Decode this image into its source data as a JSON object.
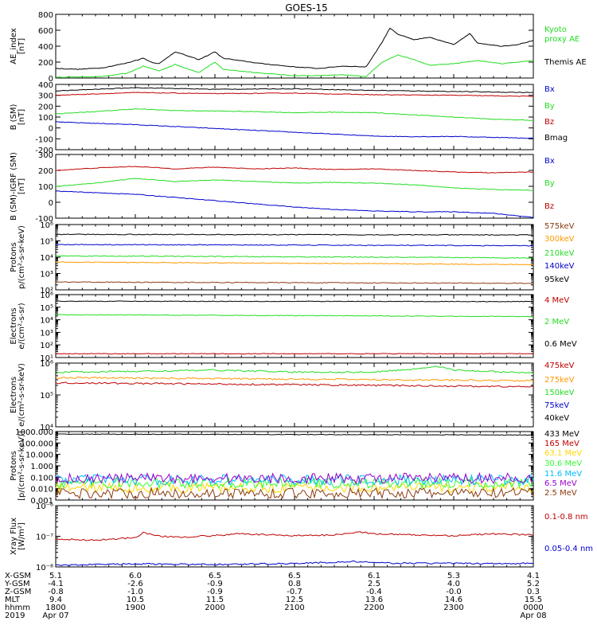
{
  "title": "GOES-15",
  "colors": {
    "black": "#000000",
    "red": "#c00000",
    "green": "#22dd22",
    "blue": "#0000cc",
    "orange": "#ff9900",
    "yellow": "#ffd700",
    "lime": "#33ff33",
    "cyan": "#00bbff",
    "purple": "#9900cc",
    "brown": "#8b3a0f"
  },
  "footer": {
    "row_labels": [
      "X-GSM",
      "Y-GSM",
      "Z-GSM",
      "MLT",
      "hhmm",
      "2019"
    ],
    "columns": [
      [
        "5.1",
        "-4.1",
        "-0.8",
        "9.4",
        "1800",
        "Apr 07"
      ],
      [
        "6.0",
        "-2.6",
        "-1.0",
        "10.5",
        "1900",
        ""
      ],
      [
        "6.5",
        "-0.9",
        "-0.9",
        "11.5",
        "2000",
        ""
      ],
      [
        "6.5",
        "0.8",
        "-0.7",
        "12.5",
        "2100",
        ""
      ],
      [
        "6.1",
        "2.5",
        "-0.4",
        "13.6",
        "2200",
        ""
      ],
      [
        "5.3",
        "4.0",
        "-0.0",
        "14.6",
        "2300",
        ""
      ],
      [
        "4.1",
        "5.2",
        "0.3",
        "15.5",
        "0000",
        "Apr 08"
      ]
    ]
  },
  "chart_data": [
    {
      "type": "line",
      "ylabel": [
        "AE_index",
        "[nT]"
      ],
      "scale": "linear",
      "ylim": [
        0,
        800
      ],
      "yticks": [
        0,
        200,
        400,
        600,
        800
      ],
      "ytick_labels": [
        "0",
        "200",
        "400",
        "600",
        "800"
      ],
      "series": [
        {
          "name": "Kyoto proxy AE",
          "legend": [
            "Kyoto",
            "proxy AE"
          ],
          "color": "#22dd22",
          "x": [
            0,
            0.3,
            0.6,
            0.9,
            1.1,
            1.2,
            1.3,
            1.5,
            1.8,
            2.0,
            2.1,
            2.3,
            2.6,
            3.0,
            3.3,
            3.6,
            3.9,
            4.1,
            4.3,
            4.5,
            4.7,
            5.0,
            5.3,
            5.6,
            5.8,
            6.0
          ],
          "y": [
            10,
            15,
            20,
            60,
            150,
            120,
            90,
            170,
            70,
            200,
            110,
            90,
            60,
            30,
            30,
            40,
            20,
            200,
            290,
            230,
            160,
            180,
            220,
            180,
            200,
            220
          ]
        },
        {
          "name": "Themis AE",
          "legend": [
            "Themis AE"
          ],
          "color": "#000000",
          "x": [
            0,
            0.3,
            0.6,
            0.9,
            1.1,
            1.2,
            1.3,
            1.5,
            1.8,
            2.0,
            2.1,
            2.3,
            2.6,
            3.0,
            3.3,
            3.6,
            3.9,
            4.1,
            4.2,
            4.3,
            4.5,
            4.7,
            5.0,
            5.2,
            5.3,
            5.6,
            5.8,
            6.0
          ],
          "y": [
            120,
            110,
            130,
            190,
            250,
            200,
            180,
            330,
            230,
            330,
            250,
            220,
            180,
            140,
            120,
            150,
            140,
            450,
            630,
            550,
            480,
            510,
            420,
            560,
            440,
            400,
            420,
            470
          ]
        }
      ]
    },
    {
      "type": "line",
      "ylabel": [
        "B (SM)",
        "[nT]"
      ],
      "scale": "linear",
      "ylim": [
        -200,
        400
      ],
      "yticks": [
        -200,
        -100,
        0,
        100,
        200,
        300,
        400
      ],
      "ytick_labels": [
        "-200",
        "-100",
        "0",
        "100",
        "200",
        "300",
        "400"
      ],
      "series": [
        {
          "name": "Bx",
          "legend": [
            "Bx"
          ],
          "color": "#0000cc",
          "x": [
            0,
            1,
            2,
            3,
            4,
            4.5,
            5,
            6
          ],
          "y": [
            55,
            30,
            -5,
            -40,
            -75,
            -80,
            -78,
            -95
          ]
        },
        {
          "name": "By",
          "legend": [
            "By"
          ],
          "color": "#22dd22",
          "x": [
            0,
            0.5,
            1,
            1.5,
            2,
            2.5,
            3,
            3.5,
            4,
            4.5,
            5,
            5.5,
            6
          ],
          "y": [
            130,
            150,
            175,
            160,
            155,
            150,
            140,
            145,
            140,
            120,
            100,
            80,
            70
          ]
        },
        {
          "name": "Bz",
          "legend": [
            "Bz"
          ],
          "color": "#c00000",
          "x": [
            0,
            1,
            2,
            3,
            4,
            5,
            6
          ],
          "y": [
            300,
            325,
            315,
            320,
            305,
            300,
            290
          ]
        },
        {
          "name": "Bmag",
          "legend": [
            "Bmag"
          ],
          "color": "#000000",
          "x": [
            0,
            1,
            2,
            3,
            4,
            5,
            6
          ],
          "y": [
            340,
            370,
            355,
            360,
            345,
            335,
            325
          ]
        }
      ]
    },
    {
      "type": "line",
      "ylabel": [
        "B (SM)-IGRF (SM)",
        "[nT]"
      ],
      "scale": "linear",
      "ylim": [
        -100,
        300
      ],
      "yticks": [
        -100,
        0,
        100,
        200,
        300
      ],
      "ytick_labels": [
        "-100",
        "0",
        "100",
        "200",
        "300"
      ],
      "series": [
        {
          "name": "Bx",
          "legend": [
            "Bx"
          ],
          "color": "#0000cc",
          "x": [
            0,
            0.5,
            1,
            1.5,
            2,
            2.5,
            3,
            3.5,
            4,
            4.5,
            5,
            5.5,
            6
          ],
          "y": [
            70,
            60,
            50,
            30,
            10,
            -10,
            -30,
            -45,
            -55,
            -60,
            -60,
            -70,
            -95
          ]
        },
        {
          "name": "By",
          "legend": [
            "By"
          ],
          "color": "#22dd22",
          "x": [
            0,
            0.5,
            1,
            1.5,
            2,
            2.5,
            3,
            3.5,
            4,
            4.5,
            5,
            5.5,
            6
          ],
          "y": [
            100,
            120,
            150,
            130,
            140,
            130,
            120,
            125,
            120,
            110,
            90,
            80,
            75
          ]
        },
        {
          "name": "Bz",
          "legend": [
            "Bz"
          ],
          "color": "#c00000",
          "x": [
            0,
            0.5,
            1,
            1.5,
            2,
            2.5,
            3,
            3.5,
            4,
            4.5,
            5,
            5.5,
            6
          ],
          "y": [
            200,
            215,
            225,
            210,
            220,
            210,
            215,
            205,
            210,
            200,
            190,
            185,
            190
          ]
        }
      ]
    },
    {
      "type": "line",
      "ylabel": [
        "Protons",
        "p/(cm²-s-sr-keV)"
      ],
      "scale": "log",
      "ylim": [
        100.0,
        1000000.0
      ],
      "yticks": [
        100.0,
        1000.0,
        10000.0,
        100000.0,
        1000000.0
      ],
      "ytick_labels": [
        "10²",
        "10³",
        "10⁴",
        "10⁵",
        "10⁶"
      ],
      "series": [
        {
          "name": "575keV",
          "legend": [
            "575keV"
          ],
          "color": "#8b3a0f",
          "x": [
            0,
            6
          ],
          "y": [
            300,
            250
          ]
        },
        {
          "name": "300keV",
          "legend": [
            "300keV"
          ],
          "color": "#ff9900",
          "x": [
            0,
            6
          ],
          "y": [
            5000,
            3500
          ]
        },
        {
          "name": "210keV",
          "legend": [
            "210keV"
          ],
          "color": "#22dd22",
          "x": [
            0,
            6
          ],
          "y": [
            12000,
            9000
          ]
        },
        {
          "name": "140keV",
          "legend": [
            "140keV"
          ],
          "color": "#0000cc",
          "x": [
            0,
            6
          ],
          "y": [
            60000,
            50000
          ]
        },
        {
          "name": "95keV",
          "legend": [
            "95keV"
          ],
          "color": "#000000",
          "x": [
            0,
            6
          ],
          "y": [
            250000,
            230000
          ]
        }
      ]
    },
    {
      "type": "line",
      "ylabel": [
        "Electrons",
        "e/(cm²-s-sr)"
      ],
      "scale": "log",
      "ylim": [
        10.0,
        1000000.0
      ],
      "yticks": [
        10.0,
        100.0,
        1000.0,
        10000.0,
        100000.0,
        1000000.0
      ],
      "ytick_labels": [
        "10¹",
        "10²",
        "10³",
        "10⁴",
        "10⁵",
        "10⁶"
      ],
      "series": [
        {
          "name": "4 MeV",
          "legend": [
            "4 MeV"
          ],
          "color": "#c00000",
          "x": [
            0,
            6
          ],
          "y": [
            20,
            20
          ]
        },
        {
          "name": "2 MeV",
          "legend": [
            "2 MeV"
          ],
          "color": "#22dd22",
          "x": [
            0,
            6
          ],
          "y": [
            25000,
            18000
          ]
        },
        {
          "name": "0.6 MeV",
          "legend": [
            "0.6 MeV"
          ],
          "color": "#000000",
          "x": [
            0,
            6
          ],
          "y": [
            300000,
            280000
          ]
        }
      ]
    },
    {
      "type": "line",
      "ylabel": [
        "Electrons",
        "e/(cm²-s-sr-keV)"
      ],
      "scale": "log",
      "ylim": [
        10000.0,
        1000000.0
      ],
      "yticks": [
        10000.0,
        100000.0,
        1000000.0
      ],
      "ytick_labels": [
        "10⁴",
        "10⁵",
        "10⁶"
      ],
      "series": [
        {
          "name": "475keV",
          "legend": [
            "475keV"
          ],
          "color": "#c00000",
          "x": [
            0,
            6
          ],
          "y": [
            240000,
            180000
          ]
        },
        {
          "name": "275keV",
          "legend": [
            "275keV"
          ],
          "color": "#ff9900",
          "x": [
            0,
            6
          ],
          "y": [
            350000,
            280000
          ]
        },
        {
          "name": "150keV",
          "legend": [
            "150keV"
          ],
          "color": "#22dd22",
          "x": [
            0,
            1,
            2,
            3,
            4,
            4.5,
            4.8,
            5,
            6
          ],
          "y": [
            520000,
            550000,
            600000,
            520000,
            520000,
            650000,
            800000,
            600000,
            480000
          ]
        },
        {
          "name": "75keV",
          "legend": [
            "75keV"
          ],
          "color": "#0000cc",
          "x": [],
          "y": []
        },
        {
          "name": "40keV",
          "legend": [
            "40keV"
          ],
          "color": "#000000",
          "x": [],
          "y": []
        }
      ]
    },
    {
      "type": "line",
      "ylabel": [
        "Protons",
        "[p/(cm²-s-sr-keV)]"
      ],
      "scale": "log",
      "ylim": [
        0.001,
        1000
      ],
      "yticks": [
        0.001,
        0.01,
        0.1,
        1,
        10,
        100,
        1000
      ],
      "ytick_labels": [
        "0.001",
        "0.010",
        "0.100",
        "1.000",
        "10.000",
        "100.000",
        "1000.000"
      ],
      "series": [
        {
          "name": "433 MeV",
          "legend": [
            "433 MeV"
          ],
          "color": "#000000",
          "x": [
            0,
            6
          ],
          "y": [
            600,
            500
          ]
        },
        {
          "name": "165 MeV",
          "legend": [
            "165 MeV"
          ],
          "color": "#c00000",
          "x": [],
          "y": []
        },
        {
          "name": "63.1 MeV",
          "legend": [
            "63.1 MeV"
          ],
          "color": "#ffd700",
          "x": [
            0,
            6
          ],
          "y": [
            0.012,
            0.012
          ]
        },
        {
          "name": "30.6 MeV",
          "legend": [
            "30.6 MeV"
          ],
          "color": "#33ff33",
          "x": [
            0,
            6
          ],
          "y": [
            0.03,
            0.03
          ]
        },
        {
          "name": "11.6 MeV",
          "legend": [
            "11.6 MeV"
          ],
          "color": "#00bbff",
          "x": [
            0,
            6
          ],
          "y": [
            0.06,
            0.06
          ]
        },
        {
          "name": "6.5 MeV",
          "legend": [
            "6.5 MeV"
          ],
          "color": "#9900cc",
          "x": [
            0,
            6
          ],
          "y": [
            0.08,
            0.08
          ]
        },
        {
          "name": "2.5 MeV",
          "legend": [
            "2.5 MeV"
          ],
          "color": "#8b3a0f",
          "x": [
            0,
            6
          ],
          "y": [
            0.004,
            0.004
          ]
        }
      ]
    },
    {
      "type": "line",
      "ylabel": [
        "Xray Flux",
        "[W/m²]"
      ],
      "scale": "log",
      "ylim": [
        1e-08,
        1e-06
      ],
      "yticks": [
        1e-08,
        1e-07,
        1e-06
      ],
      "ytick_labels": [
        "10⁻⁸",
        "10⁻⁷",
        "10⁻⁶"
      ],
      "series": [
        {
          "name": "0.1-0.8 nm",
          "legend": [
            "0.1-0.8 nm"
          ],
          "color": "#c00000",
          "x": [
            0,
            0.5,
            1.0,
            1.1,
            1.3,
            1.6,
            2.0,
            2.3,
            3.0,
            3.5,
            3.8,
            4.0,
            4.5,
            5.0,
            5.5,
            6.0
          ],
          "y": [
            8e-08,
            7.5e-08,
            9e-08,
            1.3e-07,
            1e-07,
            9.5e-08,
            1.05e-07,
            1.2e-07,
            1.05e-07,
            1.1e-07,
            1.4e-07,
            1.2e-07,
            1.1e-07,
            1.05e-07,
            1.2e-07,
            1.1e-07
          ]
        },
        {
          "name": "0.05-0.4 nm",
          "legend": [
            "0.05-0.4 nm"
          ],
          "color": "#0000cc",
          "x": [
            0,
            1,
            2,
            3,
            3.8,
            4,
            5,
            6
          ],
          "y": [
            1.15e-08,
            1.25e-08,
            1.2e-08,
            1.3e-08,
            1.5e-08,
            1.35e-08,
            1.3e-08,
            1.3e-08
          ]
        }
      ]
    }
  ]
}
